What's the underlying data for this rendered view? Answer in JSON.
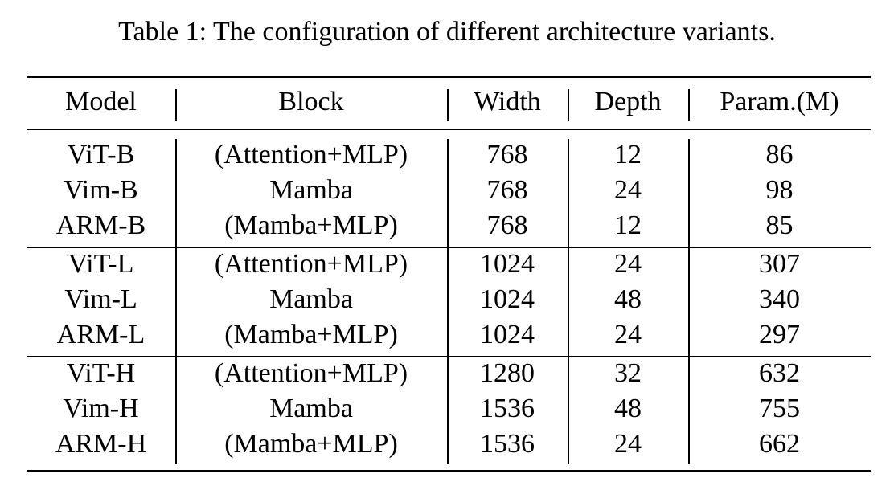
{
  "caption": "Table 1: The configuration of different architecture variants.",
  "table": {
    "headers": [
      "Model",
      "Block",
      "Width",
      "Depth",
      "Param.(M)"
    ],
    "groups": [
      {
        "rows": [
          [
            "ViT-B",
            "(Attention+MLP)",
            "768",
            "12",
            "86"
          ],
          [
            "Vim-B",
            "Mamba",
            "768",
            "24",
            "98"
          ],
          [
            "ARM-B",
            "(Mamba+MLP)",
            "768",
            "12",
            "85"
          ]
        ]
      },
      {
        "rows": [
          [
            "ViT-L",
            "(Attention+MLP)",
            "1024",
            "24",
            "307"
          ],
          [
            "Vim-L",
            "Mamba",
            "1024",
            "48",
            "340"
          ],
          [
            "ARM-L",
            "(Mamba+MLP)",
            "1024",
            "24",
            "297"
          ]
        ]
      },
      {
        "rows": [
          [
            "ViT-H",
            "(Attention+MLP)",
            "1280",
            "32",
            "632"
          ],
          [
            "Vim-H",
            "Mamba",
            "1536",
            "48",
            "755"
          ],
          [
            "ARM-H",
            "(Mamba+MLP)",
            "1536",
            "24",
            "662"
          ]
        ]
      }
    ]
  }
}
